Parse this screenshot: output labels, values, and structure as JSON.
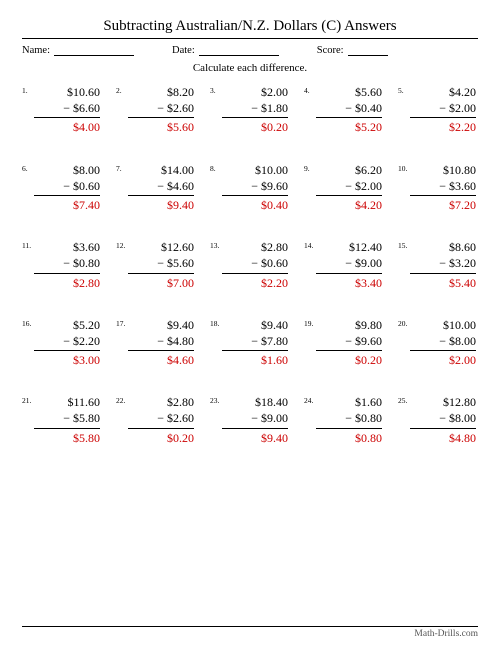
{
  "title": "Subtracting Australian/N.Z. Dollars (C) Answers",
  "meta": {
    "name_label": "Name:",
    "date_label": "Date:",
    "score_label": "Score:"
  },
  "instruction": "Calculate each difference.",
  "footer": "Math-Drills.com",
  "problems": [
    {
      "n": "1.",
      "top": "$10.60",
      "bot": "− $6.60",
      "ans": "$4.00"
    },
    {
      "n": "2.",
      "top": "$8.20",
      "bot": "− $2.60",
      "ans": "$5.60"
    },
    {
      "n": "3.",
      "top": "$2.00",
      "bot": "− $1.80",
      "ans": "$0.20"
    },
    {
      "n": "4.",
      "top": "$5.60",
      "bot": "− $0.40",
      "ans": "$5.20"
    },
    {
      "n": "5.",
      "top": "$4.20",
      "bot": "− $2.00",
      "ans": "$2.20"
    },
    {
      "n": "6.",
      "top": "$8.00",
      "bot": "− $0.60",
      "ans": "$7.40"
    },
    {
      "n": "7.",
      "top": "$14.00",
      "bot": "− $4.60",
      "ans": "$9.40"
    },
    {
      "n": "8.",
      "top": "$10.00",
      "bot": "− $9.60",
      "ans": "$0.40"
    },
    {
      "n": "9.",
      "top": "$6.20",
      "bot": "− $2.00",
      "ans": "$4.20"
    },
    {
      "n": "10.",
      "top": "$10.80",
      "bot": "− $3.60",
      "ans": "$7.20"
    },
    {
      "n": "11.",
      "top": "$3.60",
      "bot": "− $0.80",
      "ans": "$2.80"
    },
    {
      "n": "12.",
      "top": "$12.60",
      "bot": "− $5.60",
      "ans": "$7.00"
    },
    {
      "n": "13.",
      "top": "$2.80",
      "bot": "− $0.60",
      "ans": "$2.20"
    },
    {
      "n": "14.",
      "top": "$12.40",
      "bot": "− $9.00",
      "ans": "$3.40"
    },
    {
      "n": "15.",
      "top": "$8.60",
      "bot": "− $3.20",
      "ans": "$5.40"
    },
    {
      "n": "16.",
      "top": "$5.20",
      "bot": "− $2.20",
      "ans": "$3.00"
    },
    {
      "n": "17.",
      "top": "$9.40",
      "bot": "− $4.80",
      "ans": "$4.60"
    },
    {
      "n": "18.",
      "top": "$9.40",
      "bot": "− $7.80",
      "ans": "$1.60"
    },
    {
      "n": "19.",
      "top": "$9.80",
      "bot": "− $9.60",
      "ans": "$0.20"
    },
    {
      "n": "20.",
      "top": "$10.00",
      "bot": "− $8.00",
      "ans": "$2.00"
    },
    {
      "n": "21.",
      "top": "$11.60",
      "bot": "− $5.80",
      "ans": "$5.80"
    },
    {
      "n": "22.",
      "top": "$2.80",
      "bot": "− $2.60",
      "ans": "$0.20"
    },
    {
      "n": "23.",
      "top": "$18.40",
      "bot": "− $9.00",
      "ans": "$9.40"
    },
    {
      "n": "24.",
      "top": "$1.60",
      "bot": "− $0.80",
      "ans": "$0.80"
    },
    {
      "n": "25.",
      "top": "$12.80",
      "bot": "− $8.00",
      "ans": "$4.80"
    }
  ]
}
